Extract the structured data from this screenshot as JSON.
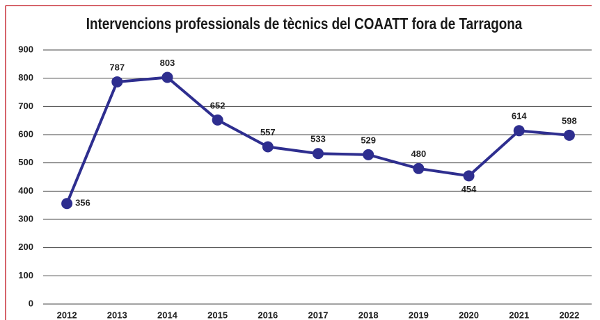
{
  "chart_data": {
    "type": "line",
    "title": "Intervencions professionals de tècnics del COAATT fora de Tarragona",
    "categories": [
      "2012",
      "2013",
      "2014",
      "2015",
      "2016",
      "2017",
      "2018",
      "2019",
      "2020",
      "2021",
      "2022"
    ],
    "values": [
      356,
      787,
      803,
      652,
      557,
      533,
      529,
      480,
      454,
      614,
      598
    ],
    "color": "#2e2e8f",
    "ylim": [
      0,
      900
    ],
    "yticks": [
      0,
      100,
      200,
      300,
      400,
      500,
      600,
      700,
      800,
      900
    ],
    "grid": true
  }
}
